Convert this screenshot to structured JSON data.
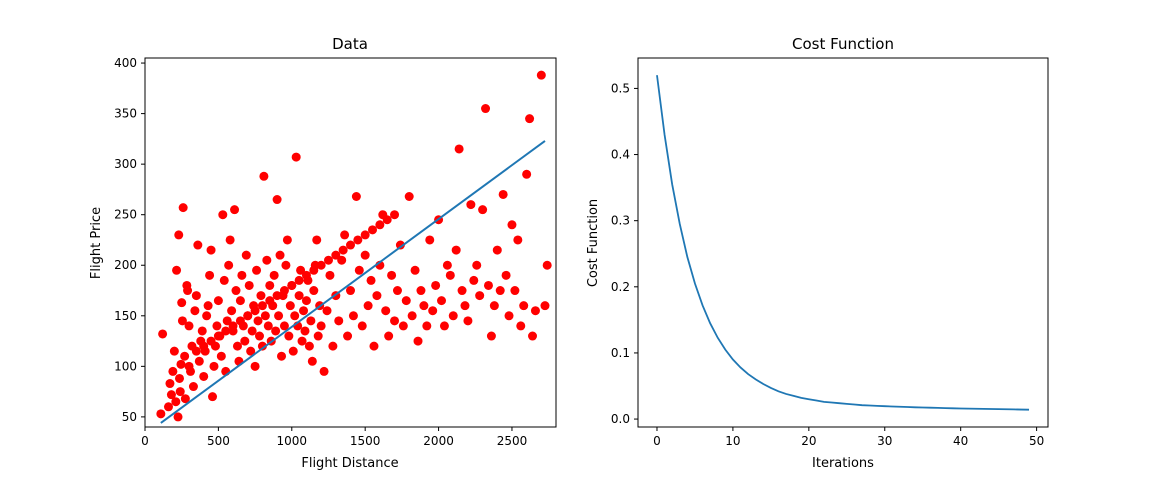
{
  "colors": {
    "scatter": "#ff0000",
    "line": "#1f77b4",
    "axes": "#000000",
    "background": "#ffffff"
  },
  "chart_data": [
    {
      "type": "scatter",
      "title": "Data",
      "xlabel": "Flight Distance",
      "ylabel": "Flight Price",
      "xlim": [
        0,
        2800
      ],
      "ylim": [
        40,
        405
      ],
      "xticks": [
        0,
        500,
        1000,
        1500,
        2000,
        2500
      ],
      "yticks": [
        50,
        100,
        150,
        200,
        250,
        300,
        350,
        400
      ],
      "grid": false,
      "legend": "none",
      "fit_line": {
        "x": [
          108,
          2725
        ],
        "y": [
          44,
          323
        ]
      },
      "series": [
        {
          "points": [
            [
              108,
              53
            ],
            [
              120,
              132
            ],
            [
              160,
              60
            ],
            [
              170,
              83
            ],
            [
              180,
              72
            ],
            [
              190,
              95
            ],
            [
              200,
              115
            ],
            [
              210,
              65
            ],
            [
              215,
              195
            ],
            [
              225,
              50
            ],
            [
              230,
              230
            ],
            [
              235,
              88
            ],
            [
              240,
              75
            ],
            [
              245,
              102
            ],
            [
              250,
              163
            ],
            [
              255,
              145
            ],
            [
              260,
              257
            ],
            [
              270,
              110
            ],
            [
              275,
              68
            ],
            [
              285,
              180
            ],
            [
              290,
              175
            ],
            [
              300,
              140
            ],
            [
              310,
              95
            ],
            [
              320,
              120
            ],
            [
              330,
              80
            ],
            [
              340,
              155
            ],
            [
              350,
              170
            ],
            [
              360,
              220
            ],
            [
              370,
              105
            ],
            [
              380,
              125
            ],
            [
              390,
              135
            ],
            [
              400,
              90
            ],
            [
              410,
              115
            ],
            [
              420,
              150
            ],
            [
              430,
              160
            ],
            [
              440,
              190
            ],
            [
              450,
              215
            ],
            [
              460,
              70
            ],
            [
              470,
              100
            ],
            [
              480,
              120
            ],
            [
              490,
              140
            ],
            [
              500,
              165
            ],
            [
              510,
              130
            ],
            [
              520,
              110
            ],
            [
              530,
              250
            ],
            [
              540,
              185
            ],
            [
              550,
              95
            ],
            [
              560,
              145
            ],
            [
              570,
              200
            ],
            [
              580,
              225
            ],
            [
              590,
              155
            ],
            [
              600,
              135
            ],
            [
              610,
              255
            ],
            [
              620,
              175
            ],
            [
              630,
              120
            ],
            [
              640,
              105
            ],
            [
              650,
              165
            ],
            [
              660,
              190
            ],
            [
              670,
              140
            ],
            [
              680,
              125
            ],
            [
              690,
              210
            ],
            [
              700,
              150
            ],
            [
              710,
              180
            ],
            [
              720,
              115
            ],
            [
              730,
              135
            ],
            [
              740,
              160
            ],
            [
              750,
              100
            ],
            [
              760,
              195
            ],
            [
              770,
              145
            ],
            [
              780,
              130
            ],
            [
              790,
              170
            ],
            [
              800,
              120
            ],
            [
              810,
              288
            ],
            [
              820,
              150
            ],
            [
              830,
              205
            ],
            [
              840,
              140
            ],
            [
              850,
              180
            ],
            [
              860,
              125
            ],
            [
              870,
              160
            ],
            [
              880,
              190
            ],
            [
              890,
              135
            ],
            [
              900,
              265
            ],
            [
              910,
              150
            ],
            [
              920,
              210
            ],
            [
              930,
              110
            ],
            [
              940,
              170
            ],
            [
              950,
              140
            ],
            [
              960,
              200
            ],
            [
              970,
              225
            ],
            [
              980,
              130
            ],
            [
              990,
              160
            ],
            [
              1000,
              180
            ],
            [
              1010,
              115
            ],
            [
              1020,
              150
            ],
            [
              1030,
              307
            ],
            [
              1040,
              140
            ],
            [
              1050,
              170
            ],
            [
              1060,
              195
            ],
            [
              1070,
              125
            ],
            [
              1080,
              155
            ],
            [
              1090,
              135
            ],
            [
              1100,
              165
            ],
            [
              1110,
              185
            ],
            [
              1120,
              120
            ],
            [
              1130,
              145
            ],
            [
              1140,
              105
            ],
            [
              1150,
              175
            ],
            [
              1160,
              200
            ],
            [
              1170,
              225
            ],
            [
              1180,
              130
            ],
            [
              1190,
              160
            ],
            [
              1200,
              140
            ],
            [
              1220,
              95
            ],
            [
              1240,
              155
            ],
            [
              1260,
              190
            ],
            [
              1280,
              120
            ],
            [
              1300,
              170
            ],
            [
              1320,
              145
            ],
            [
              1340,
              205
            ],
            [
              1360,
              230
            ],
            [
              1380,
              130
            ],
            [
              1400,
              175
            ],
            [
              1420,
              150
            ],
            [
              1440,
              268
            ],
            [
              1460,
              195
            ],
            [
              1480,
              140
            ],
            [
              1500,
              210
            ],
            [
              1520,
              160
            ],
            [
              1540,
              185
            ],
            [
              1560,
              120
            ],
            [
              1580,
              170
            ],
            [
              1600,
              200
            ],
            [
              1620,
              250
            ],
            [
              1640,
              155
            ],
            [
              1660,
              130
            ],
            [
              1680,
              190
            ],
            [
              1700,
              145
            ],
            [
              1720,
              175
            ],
            [
              1740,
              220
            ],
            [
              1760,
              140
            ],
            [
              1780,
              165
            ],
            [
              1800,
              268
            ],
            [
              1820,
              150
            ],
            [
              1840,
              195
            ],
            [
              1860,
              125
            ],
            [
              1880,
              175
            ],
            [
              1900,
              160
            ],
            [
              1920,
              140
            ],
            [
              1940,
              225
            ],
            [
              1960,
              155
            ],
            [
              1980,
              180
            ],
            [
              2000,
              245
            ],
            [
              2020,
              165
            ],
            [
              2040,
              140
            ],
            [
              2060,
              200
            ],
            [
              2080,
              190
            ],
            [
              2100,
              150
            ],
            [
              2120,
              215
            ],
            [
              2140,
              315
            ],
            [
              2160,
              175
            ],
            [
              2180,
              160
            ],
            [
              2200,
              145
            ],
            [
              2220,
              260
            ],
            [
              2240,
              185
            ],
            [
              2260,
              200
            ],
            [
              2280,
              170
            ],
            [
              2300,
              255
            ],
            [
              2320,
              355
            ],
            [
              2340,
              180
            ],
            [
              2360,
              130
            ],
            [
              2380,
              160
            ],
            [
              2400,
              215
            ],
            [
              2420,
              175
            ],
            [
              2440,
              270
            ],
            [
              2460,
              190
            ],
            [
              2480,
              150
            ],
            [
              2500,
              240
            ],
            [
              2520,
              175
            ],
            [
              2540,
              225
            ],
            [
              2560,
              140
            ],
            [
              2580,
              160
            ],
            [
              2600,
              290
            ],
            [
              2620,
              345
            ],
            [
              2640,
              130
            ],
            [
              2660,
              155
            ],
            [
              2700,
              388
            ],
            [
              2725,
              160
            ],
            [
              2740,
              200
            ],
            [
              300,
              100
            ],
            [
              350,
              115
            ],
            [
              400,
              120
            ],
            [
              450,
              125
            ],
            [
              500,
              130
            ],
            [
              550,
              135
            ],
            [
              600,
              140
            ],
            [
              650,
              145
            ],
            [
              700,
              150
            ],
            [
              750,
              155
            ],
            [
              800,
              160
            ],
            [
              850,
              165
            ],
            [
              900,
              170
            ],
            [
              950,
              175
            ],
            [
              1000,
              180
            ],
            [
              1050,
              185
            ],
            [
              1100,
              190
            ],
            [
              1150,
              195
            ],
            [
              1200,
              200
            ],
            [
              1250,
              205
            ],
            [
              1300,
              210
            ],
            [
              1350,
              215
            ],
            [
              1400,
              220
            ],
            [
              1450,
              225
            ],
            [
              1500,
              230
            ],
            [
              1550,
              235
            ],
            [
              1600,
              240
            ],
            [
              1650,
              245
            ],
            [
              1700,
              250
            ]
          ]
        }
      ]
    },
    {
      "type": "line",
      "title": "Cost Function",
      "xlabel": "Iterations",
      "ylabel": "Cost Function",
      "xlim": [
        -2.5,
        51.5
      ],
      "ylim": [
        -0.012,
        0.546
      ],
      "xticks": [
        0,
        10,
        20,
        30,
        40,
        50
      ],
      "yticks": [
        0.0,
        0.1,
        0.2,
        0.3,
        0.4,
        0.5
      ],
      "ytick_labels": [
        "0.0",
        "0.1",
        "0.2",
        "0.3",
        "0.4",
        "0.5"
      ],
      "grid": false,
      "legend": "none",
      "x": [
        0,
        1,
        2,
        3,
        4,
        5,
        6,
        7,
        8,
        9,
        10,
        11,
        12,
        13,
        14,
        15,
        16,
        17,
        18,
        19,
        20,
        21,
        22,
        23,
        24,
        25,
        26,
        27,
        28,
        29,
        30,
        31,
        32,
        33,
        34,
        35,
        36,
        37,
        38,
        39,
        40,
        41,
        42,
        43,
        44,
        45,
        46,
        47,
        48,
        49
      ],
      "series": [
        {
          "values": [
            0.52,
            0.43,
            0.355,
            0.295,
            0.245,
            0.205,
            0.172,
            0.145,
            0.123,
            0.105,
            0.09,
            0.078,
            0.068,
            0.06,
            0.053,
            0.047,
            0.042,
            0.038,
            0.035,
            0.032,
            0.03,
            0.028,
            0.026,
            0.025,
            0.024,
            0.023,
            0.022,
            0.021,
            0.0205,
            0.02,
            0.0195,
            0.019,
            0.0186,
            0.0182,
            0.0178,
            0.0175,
            0.0172,
            0.0169,
            0.0166,
            0.0163,
            0.016,
            0.0158,
            0.0156,
            0.0154,
            0.0152,
            0.015,
            0.0148,
            0.0146,
            0.0144,
            0.0142
          ]
        }
      ]
    }
  ]
}
